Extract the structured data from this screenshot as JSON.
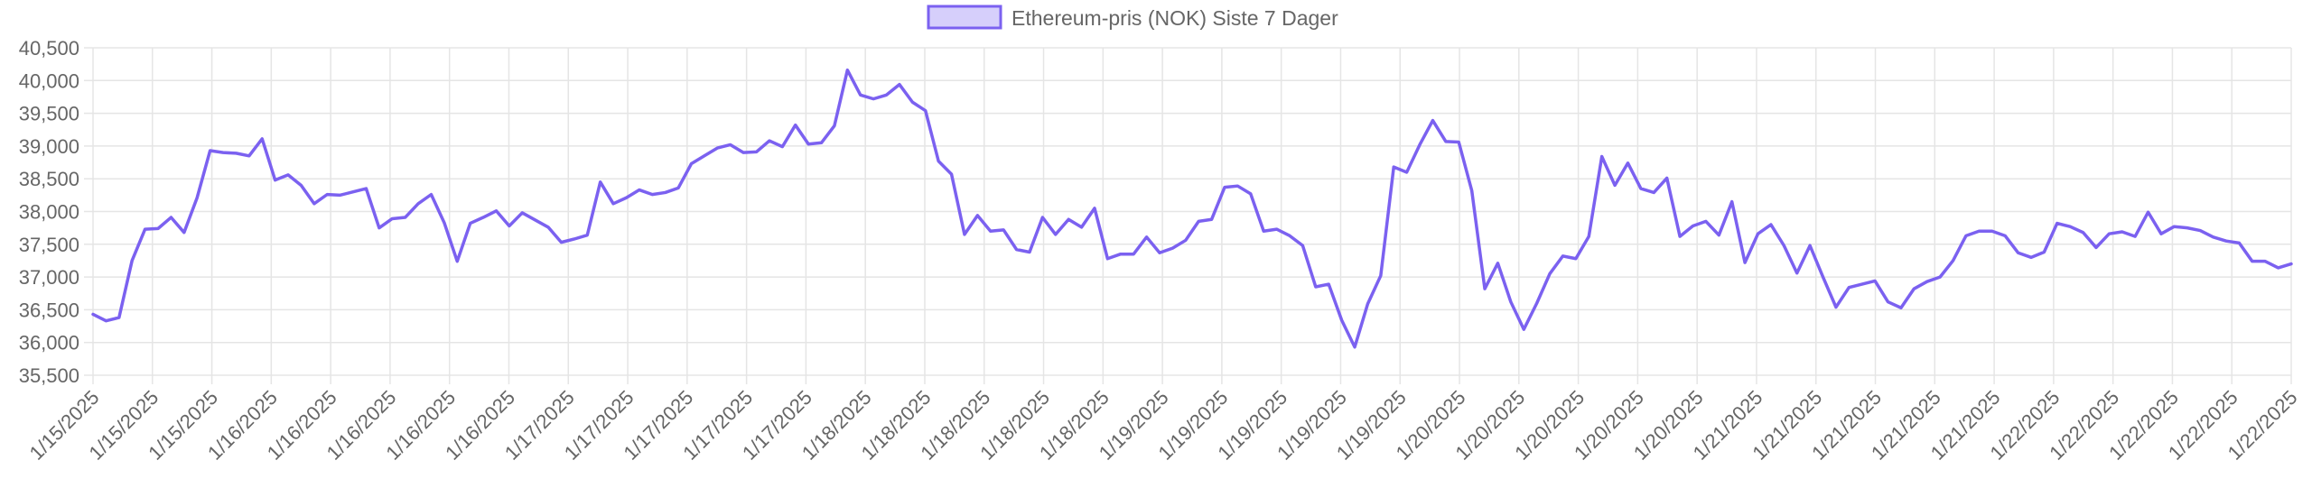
{
  "chart_data": {
    "type": "line",
    "legend_position": "top",
    "grid": true,
    "ylim": [
      35500,
      40500
    ],
    "y_ticks": [
      "35,500",
      "36,000",
      "36,500",
      "37,000",
      "37,500",
      "38,000",
      "38,500",
      "39,000",
      "39,500",
      "40,000",
      "40,500"
    ],
    "x_tick_labels": [
      "1/15/2025",
      "1/15/2025",
      "1/15/2025",
      "1/16/2025",
      "1/16/2025",
      "1/16/2025",
      "1/16/2025",
      "1/16/2025",
      "1/17/2025",
      "1/17/2025",
      "1/17/2025",
      "1/17/2025",
      "1/17/2025",
      "1/18/2025",
      "1/18/2025",
      "1/18/2025",
      "1/18/2025",
      "1/18/2025",
      "1/19/2025",
      "1/19/2025",
      "1/19/2025",
      "1/19/2025",
      "1/19/2025",
      "1/20/2025",
      "1/20/2025",
      "1/20/2025",
      "1/20/2025",
      "1/20/2025",
      "1/21/2025",
      "1/21/2025",
      "1/21/2025",
      "1/21/2025",
      "1/21/2025",
      "1/22/2025",
      "1/22/2025",
      "1/22/2025",
      "1/22/2025",
      "1/22/2025"
    ],
    "series": [
      {
        "name": "Ethereum-pris (NOK) Siste 7 Dager",
        "color": "#7b61f0",
        "fill": "#d6cffb",
        "values": [
          36430,
          36330,
          36380,
          37250,
          37730,
          37740,
          37910,
          37680,
          38210,
          38930,
          38900,
          38890,
          38850,
          39110,
          38480,
          38560,
          38400,
          38120,
          38260,
          38250,
          38300,
          38350,
          37750,
          37890,
          37910,
          38120,
          38260,
          37830,
          37240,
          37820,
          37910,
          38010,
          37780,
          37980,
          37870,
          37760,
          37530,
          37580,
          37640,
          38450,
          38120,
          38210,
          38330,
          38260,
          38290,
          38360,
          38730,
          38850,
          38970,
          39020,
          38900,
          38910,
          39080,
          38990,
          39320,
          39030,
          39050,
          39310,
          40160,
          39780,
          39720,
          39780,
          39940,
          39670,
          39540,
          38770,
          38570,
          37650,
          37940,
          37700,
          37720,
          37420,
          37380,
          37910,
          37650,
          37880,
          37760,
          38050,
          37280,
          37350,
          37350,
          37610,
          37370,
          37440,
          37560,
          37850,
          37880,
          38370,
          38390,
          38270,
          37700,
          37730,
          37630,
          37480,
          36850,
          36890,
          36340,
          35930,
          36590,
          37020,
          38680,
          38600,
          39020,
          39390,
          39070,
          39060,
          38320,
          36820,
          37210,
          36620,
          36200,
          36600,
          37050,
          37320,
          37280,
          37620,
          38840,
          38400,
          38740,
          38350,
          38290,
          38510,
          37620,
          37780,
          37850,
          37640,
          38150,
          37220,
          37660,
          37800,
          37480,
          37060,
          37480,
          37000,
          36540,
          36840,
          36890,
          36940,
          36620,
          36530,
          36820,
          36930,
          37000,
          37250,
          37630,
          37700,
          37700,
          37630,
          37370,
          37300,
          37380,
          37820,
          37770,
          37680,
          37450,
          37660,
          37690,
          37620,
          37990,
          37660,
          37770,
          37750,
          37710,
          37610,
          37550,
          37520,
          37240,
          37240,
          37140,
          37200
        ]
      }
    ]
  }
}
